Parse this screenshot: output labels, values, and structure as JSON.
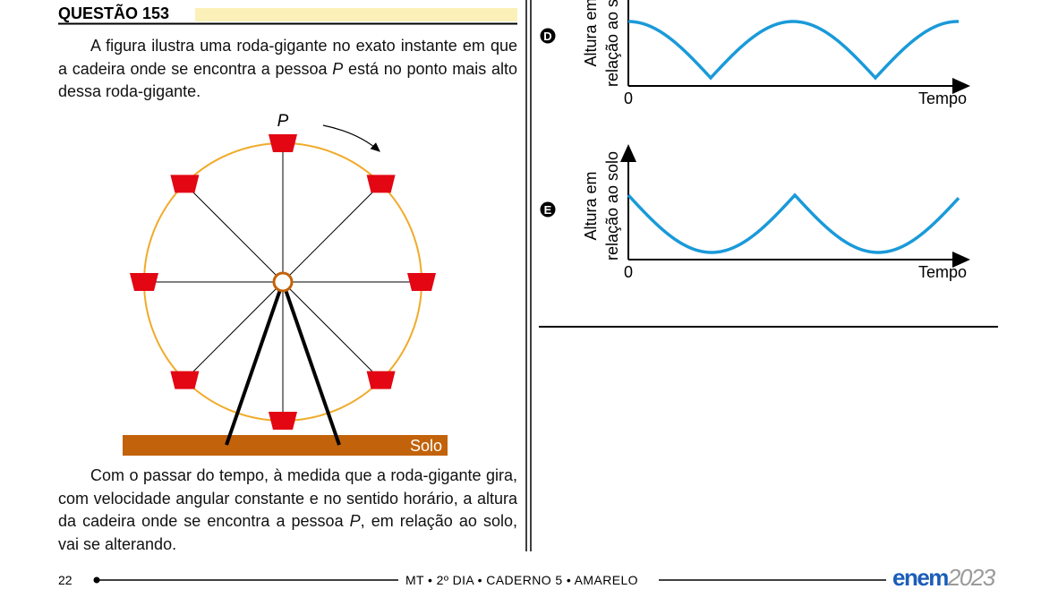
{
  "question": {
    "title": "QUESTÃO 153",
    "intro": [
      "A figura ilustra uma roda-gigante no exato instante em que a cadeira onde se encontra a pessoa ",
      "P",
      " está no ponto mais alto dessa roda-gigante."
    ],
    "figure": {
      "person_label": "P",
      "ground_label": "Solo"
    },
    "text": [
      "Com o passar do tempo, à medida que a roda-gigante gira, com velocidade angular constante e no sentido horário, a altura da cadeira onde se encontra a pessoa ",
      "P",
      ", em relação ao solo, vai se alterando."
    ]
  },
  "options": [
    {
      "letter": "D",
      "y_label": [
        "Altura em",
        "relação ao solo"
      ],
      "origin": "0",
      "x_label": "Tempo"
    },
    {
      "letter": "E",
      "y_label": [
        "Altura em",
        "relação ao solo"
      ],
      "origin": "0",
      "x_label": "Tempo"
    }
  ],
  "footer": {
    "page": "22",
    "info": "MT • 2º DIA • CADERNO 5 • AMARELO",
    "brand": "enem",
    "year": "2023"
  }
}
